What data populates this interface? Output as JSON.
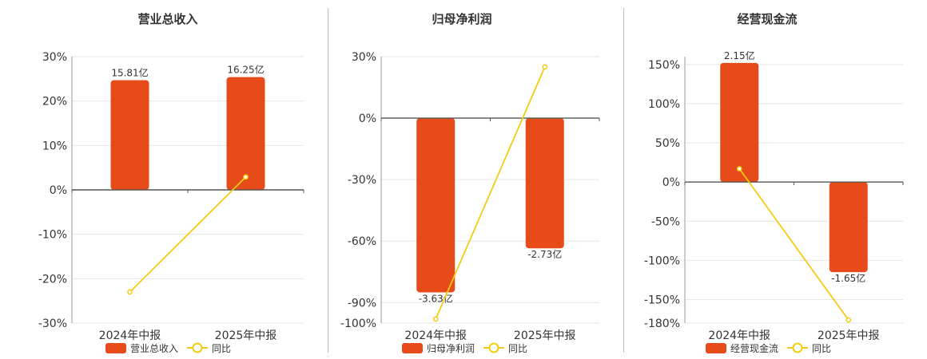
{
  "colors": {
    "bar": "#E84B1A",
    "line": "#F5CC14",
    "grid": "#e6e6e6",
    "axis": "#555555"
  },
  "legend_line_label": "同比",
  "chart_data": [
    {
      "type": "bar",
      "title": "营业总收入",
      "categories": [
        "2024年中报",
        "2025年中报"
      ],
      "series": [
        {
          "name": "营业总收入",
          "kind": "bar",
          "values": [
            24.7,
            25.4
          ],
          "labels": [
            "15.81亿",
            "16.25亿"
          ]
        },
        {
          "name": "同比",
          "kind": "line",
          "values": [
            -23.0,
            2.9
          ]
        }
      ],
      "ylim": [
        -30,
        30
      ],
      "yticks": [
        30,
        20,
        10,
        0,
        -10,
        -20,
        -30
      ],
      "ytick_labels": [
        "30%",
        "20%",
        "10%",
        "0%",
        "-10%",
        "-20%",
        "-30%"
      ],
      "grid": true,
      "legend": "bottom"
    },
    {
      "type": "bar",
      "title": "归母净利润",
      "categories": [
        "2024年中报",
        "2025年中报"
      ],
      "series": [
        {
          "name": "归母净利润",
          "kind": "bar",
          "values": [
            -85.0,
            -63.5
          ],
          "labels": [
            "-3.63亿",
            "-2.73亿"
          ]
        },
        {
          "name": "同比",
          "kind": "line",
          "values": [
            -98.0,
            25.0
          ]
        }
      ],
      "ylim": [
        -100,
        30
      ],
      "yticks": [
        30,
        0,
        -30,
        -60,
        -90,
        -100
      ],
      "ytick_labels": [
        "30%",
        "0%",
        "-30%",
        "-60%",
        "-90%",
        "-100%"
      ],
      "grid": true,
      "legend": "bottom"
    },
    {
      "type": "bar",
      "title": "经营现金流",
      "categories": [
        "2024年中报",
        "2025年中报"
      ],
      "series": [
        {
          "name": "经营现金流",
          "kind": "bar",
          "values": [
            152.0,
            -115.0
          ],
          "labels": [
            "2.15亿",
            "-1.65亿"
          ]
        },
        {
          "name": "同比",
          "kind": "line",
          "values": [
            17.0,
            -176.0
          ]
        }
      ],
      "ylim": [
        -180,
        160
      ],
      "yticks": [
        150,
        100,
        50,
        0,
        -50,
        -100,
        -150,
        -180
      ],
      "ytick_labels": [
        "150%",
        "100%",
        "50%",
        "0%",
        "-50%",
        "-100%",
        "-150%",
        "-180%"
      ],
      "grid": true,
      "legend": "bottom"
    }
  ]
}
